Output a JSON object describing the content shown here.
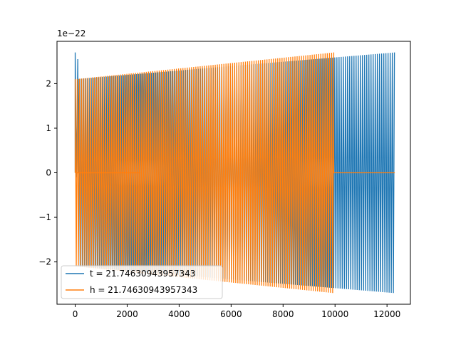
{
  "chart_data": {
    "type": "line",
    "title": "",
    "xlabel": "",
    "ylabel": "",
    "y_offset_label": "1e−22",
    "y_scale": 1e-22,
    "xlim": [
      -700,
      12900
    ],
    "ylim": [
      -2.95,
      2.95
    ],
    "x_ticks": [
      0,
      2000,
      4000,
      6000,
      8000,
      10000,
      12000
    ],
    "x_tick_labels": [
      "0",
      "2000",
      "4000",
      "6000",
      "8000",
      "10000",
      "12000"
    ],
    "y_ticks": [
      -2,
      -1,
      0,
      1,
      2
    ],
    "y_tick_labels": [
      "−2",
      "−1",
      "0",
      "1",
      "2"
    ],
    "grid": false,
    "legend_position": "lower-left",
    "series": [
      {
        "name": "t = 21.74630943957343",
        "color": "#1f77b4",
        "x_start": 0,
        "x_end": 12300,
        "amplitude_start": 2.1,
        "amplitude_end": 2.7,
        "peak_at_start": 2.7
      },
      {
        "name": "h = 21.74630943957343",
        "color": "#ff7f0e",
        "x_start": 0,
        "x_end": 9950,
        "amplitude_start": 2.1,
        "amplitude_end": 2.7,
        "flat_until": 2500,
        "zero_after": 9950,
        "zero_until": 12300
      }
    ]
  }
}
